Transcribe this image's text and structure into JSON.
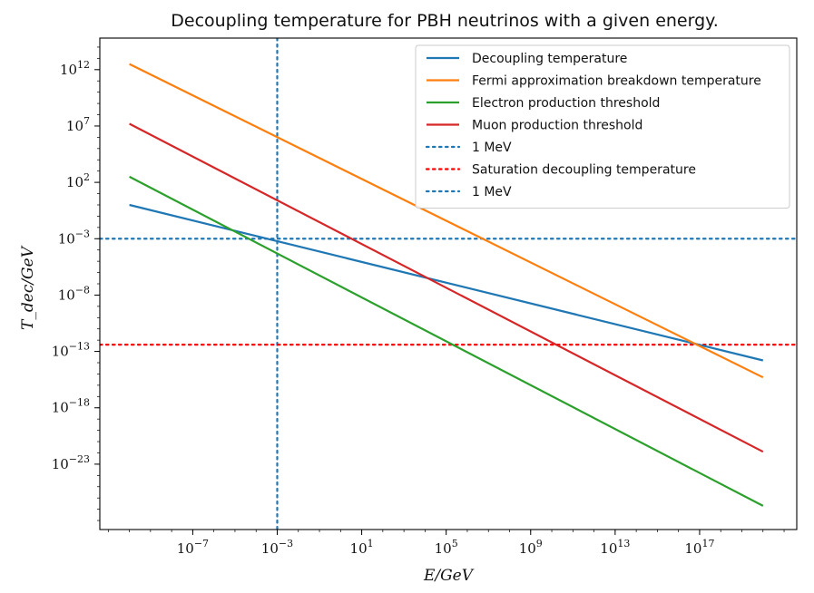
{
  "chart_data": {
    "type": "line",
    "title": "Decoupling temperature for PBH neutrinos with a given energy.",
    "xlabel": "E/GeV",
    "ylabel": "T_dec/GeV",
    "xscale": "log",
    "yscale": "log",
    "xlim_log10": [
      -11.4,
      21.6
    ],
    "ylim_log10": [
      -28.8,
      14.8
    ],
    "x_ticks": [
      {
        "exp": -7,
        "base": "10",
        "sup": "−7"
      },
      {
        "exp": -3,
        "base": "10",
        "sup": "−3"
      },
      {
        "exp": 1,
        "base": "10",
        "sup": "1"
      },
      {
        "exp": 5,
        "base": "10",
        "sup": "5"
      },
      {
        "exp": 9,
        "base": "10",
        "sup": "9"
      },
      {
        "exp": 13,
        "base": "10",
        "sup": "13"
      },
      {
        "exp": 17,
        "base": "10",
        "sup": "17"
      }
    ],
    "y_ticks": [
      {
        "exp": 12,
        "base": "10",
        "sup": "12"
      },
      {
        "exp": 7,
        "base": "10",
        "sup": "7"
      },
      {
        "exp": 2,
        "base": "10",
        "sup": "2"
      },
      {
        "exp": -3,
        "base": "10",
        "sup": "−3"
      },
      {
        "exp": -8,
        "base": "10",
        "sup": "−8"
      },
      {
        "exp": -13,
        "base": "10",
        "sup": "−13"
      },
      {
        "exp": -18,
        "base": "10",
        "sup": "−18"
      },
      {
        "exp": -23,
        "base": "10",
        "sup": "−23"
      }
    ],
    "series": [
      {
        "name": "Decoupling temperature",
        "color": "#1f77b4",
        "style": "solid",
        "log10_x": [
          -10,
          20
        ],
        "log10_y": [
          0.0,
          -13.8
        ]
      },
      {
        "name": "Fermi approximation breakdown temperature",
        "color": "#ff7f0e",
        "style": "solid",
        "log10_x": [
          -10,
          20
        ],
        "log10_y": [
          12.5,
          -15.3
        ]
      },
      {
        "name": "Electron production threshold",
        "color": "#2ca02c",
        "style": "solid",
        "log10_x": [
          -10,
          20
        ],
        "log10_y": [
          2.5,
          -26.7
        ]
      },
      {
        "name": "Muon production threshold",
        "color": "#d62728",
        "style": "solid",
        "log10_x": [
          -10,
          20
        ],
        "log10_y": [
          7.2,
          -21.9
        ]
      }
    ],
    "reference_lines": [
      {
        "name": "1 MeV",
        "orientation": "vertical",
        "log10_value": -3,
        "color": "#1f77b4",
        "style": "dotted"
      },
      {
        "name": "Saturation decoupling temperature",
        "orientation": "horizontal",
        "log10_value": -12.4,
        "color": "#ff0000",
        "style": "dotted"
      },
      {
        "name": "1 MeV",
        "orientation": "horizontal",
        "log10_value": -3,
        "color": "#1f77b4",
        "style": "dotted"
      }
    ],
    "legend": {
      "position": "top-right",
      "entries": [
        {
          "label": "Decoupling temperature",
          "color": "#1f77b4",
          "style": "solid"
        },
        {
          "label": "Fermi approximation breakdown temperature",
          "color": "#ff7f0e",
          "style": "solid"
        },
        {
          "label": "Electron production threshold",
          "color": "#2ca02c",
          "style": "solid"
        },
        {
          "label": "Muon production threshold",
          "color": "#d62728",
          "style": "solid"
        },
        {
          "label": "1 MeV",
          "color": "#1f77b4",
          "style": "dotted"
        },
        {
          "label": "Saturation decoupling temperature",
          "color": "#ff0000",
          "style": "dotted"
        },
        {
          "label": "1 MeV",
          "color": "#1f77b4",
          "style": "dotted"
        }
      ]
    }
  }
}
